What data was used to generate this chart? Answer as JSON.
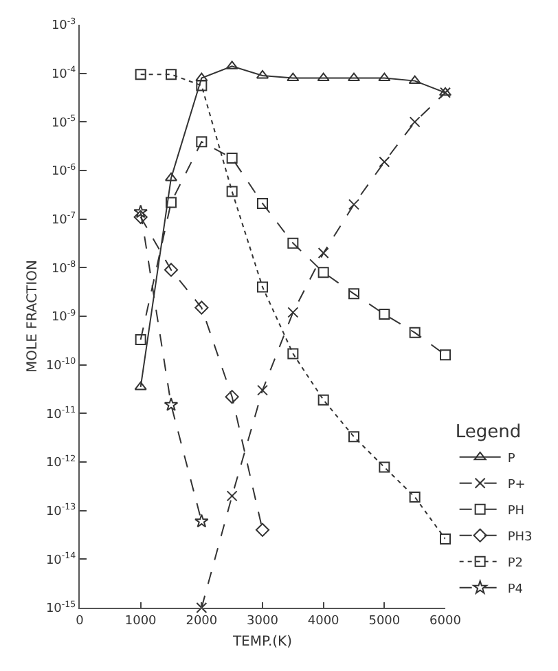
{
  "chart_data": {
    "type": "line",
    "xlabel": "TEMP.(K)",
    "ylabel": "MOLE FRACTION",
    "legend_title": "Legend",
    "legend": "bottom right",
    "log": "y",
    "grid": false,
    "xlim": [
      0,
      6000
    ],
    "xticks": [
      0,
      1000,
      2000,
      3000,
      4000,
      5000,
      6000
    ],
    "ylim": [
      1e-15,
      0.001
    ],
    "yticks": [
      {
        "value": 1e-15,
        "label": "10$^{-15}$"
      },
      {
        "value": 1e-14,
        "label": "10$^{-14}$"
      },
      {
        "value": 1e-13,
        "label": "10$^{-13}$"
      },
      {
        "value": 1e-12,
        "label": "10$^{-12}$"
      },
      {
        "value": 1e-11,
        "label": "10$^{-11}$"
      },
      {
        "value": 1e-10,
        "label": "10$^{-10}$"
      },
      {
        "value": 1e-09,
        "label": "10$^{-9}$"
      },
      {
        "value": 1e-08,
        "label": "10$^{-8}$"
      },
      {
        "value": 1e-07,
        "label": "10$^{-7}$"
      },
      {
        "value": 1e-06,
        "label": "10$^{-6}$"
      },
      {
        "value": 1e-05,
        "label": "10$^{-5}$"
      },
      {
        "value": 0.0001,
        "label": "10$^{-4}$"
      },
      {
        "value": 0.001,
        "label": "10$^{-3}$"
      }
    ],
    "series": [
      {
        "name": "P",
        "color": "#333333",
        "marker": "triangle",
        "line_style": "solid",
        "x": [
          1000,
          1500,
          2000,
          2500,
          3000,
          3500,
          4000,
          4500,
          5000,
          5500,
          6000
        ],
        "values": [
          3.5e-11,
          7e-07,
          8e-05,
          0.00014,
          9e-05,
          8e-05,
          8e-05,
          8e-05,
          8e-05,
          7e-05,
          4e-05
        ]
      },
      {
        "name": "P+",
        "color": "#333333",
        "marker": "cross",
        "line_style": "dashed",
        "x": [
          2000,
          2500,
          3000,
          3500,
          4000,
          4500,
          5000,
          5500,
          6000
        ],
        "values": [
          1e-15,
          2e-13,
          3e-11,
          1.2e-09,
          2e-08,
          2e-07,
          1.5e-06,
          1e-05,
          4e-05
        ]
      },
      {
        "name": "PH",
        "color": "#333333",
        "marker": "square",
        "line_style": "dashed",
        "x": [
          1000,
          1500,
          2000,
          2500,
          3000,
          3500,
          4000,
          4500,
          5000,
          5500,
          6000
        ],
        "values": [
          3.3e-10,
          2.2e-07,
          3.9e-06,
          1.8e-06,
          2.1e-07,
          3.2e-08,
          8e-09,
          2.9e-09,
          1.1e-09,
          4.6e-10,
          1.6e-10
        ]
      },
      {
        "name": "PH3",
        "color": "#333333",
        "marker": "diamond",
        "line_style": "dashed",
        "x": [
          1000,
          1500,
          2000,
          2500,
          3000
        ],
        "values": [
          1.1e-07,
          9e-09,
          1.5e-09,
          2.2e-11,
          4e-14
        ]
      },
      {
        "name": "P2",
        "color": "#333333",
        "marker": "square",
        "line_style": "dotted",
        "x": [
          1000,
          1500,
          2000,
          2500,
          3000,
          3500,
          4000,
          4500,
          5000,
          5500,
          6000
        ],
        "values": [
          9.5e-05,
          9.5e-05,
          5.6e-05,
          3.7e-07,
          4e-09,
          1.7e-10,
          1.9e-11,
          3.3e-12,
          7.8e-13,
          1.9e-13,
          2.6e-14
        ]
      },
      {
        "name": "P4",
        "color": "#333333",
        "marker": "star",
        "line_style": "dashed",
        "x": [
          1000,
          1500,
          2000
        ],
        "values": [
          1.4e-07,
          1.5e-11,
          6e-14
        ]
      }
    ]
  }
}
